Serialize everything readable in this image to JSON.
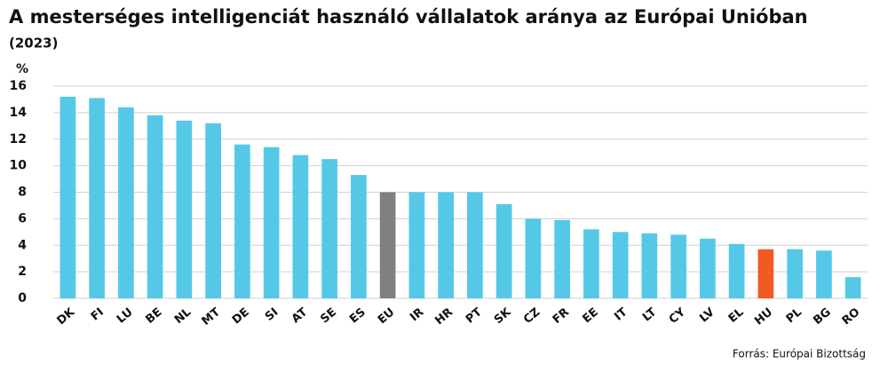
{
  "chart_data": {
    "type": "bar",
    "title": "A mesterséges intelligenciát használó vállalatok aránya az Európai Unióban",
    "subtitle": "(2023)",
    "y_label": "%",
    "source": "Forrás: Európai Bizottság",
    "categories": [
      "DK",
      "FI",
      "LU",
      "BE",
      "NL",
      "MT",
      "DE",
      "SI",
      "AT",
      "SE",
      "ES",
      "EU",
      "IR",
      "HR",
      "PT",
      "SK",
      "CZ",
      "FR",
      "EE",
      "IT",
      "LT",
      "CY",
      "LV",
      "EL",
      "HU",
      "PL",
      "BG",
      "RO"
    ],
    "values": [
      15.2,
      15.1,
      14.4,
      13.8,
      13.4,
      13.2,
      11.6,
      11.4,
      10.8,
      10.5,
      9.3,
      8.0,
      8.0,
      8.0,
      8.0,
      7.1,
      6.0,
      5.9,
      5.2,
      5.0,
      4.9,
      4.8,
      4.5,
      4.1,
      3.7,
      3.7,
      3.6,
      1.6
    ],
    "colors": [
      "#55c8e8",
      "#55c8e8",
      "#55c8e8",
      "#55c8e8",
      "#55c8e8",
      "#55c8e8",
      "#55c8e8",
      "#55c8e8",
      "#55c8e8",
      "#55c8e8",
      "#55c8e8",
      "#808080",
      "#55c8e8",
      "#55c8e8",
      "#55c8e8",
      "#55c8e8",
      "#55c8e8",
      "#55c8e8",
      "#55c8e8",
      "#55c8e8",
      "#55c8e8",
      "#55c8e8",
      "#55c8e8",
      "#55c8e8",
      "#f15a24",
      "#55c8e8",
      "#55c8e8",
      "#55c8e8"
    ],
    "ylim": [
      0,
      16
    ],
    "yticks": [
      0,
      2,
      4,
      6,
      8,
      10,
      12,
      14,
      16
    ],
    "grid": true
  }
}
